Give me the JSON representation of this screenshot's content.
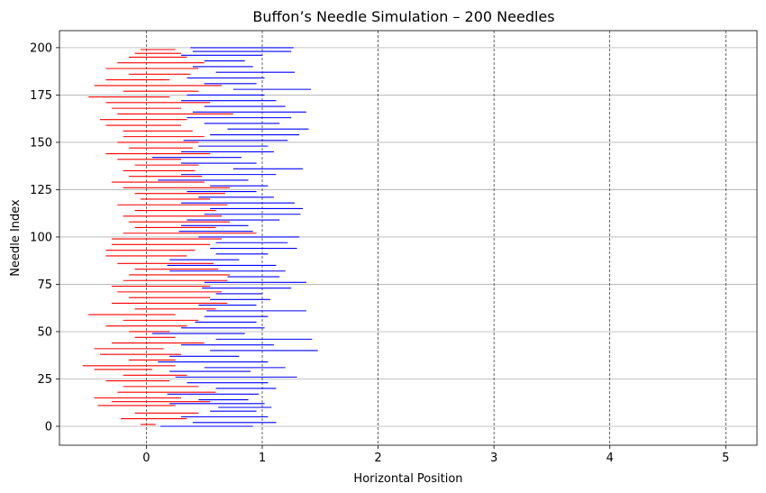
{
  "chart_data": {
    "type": "line",
    "title": "Buffon’s Needle Simulation – 200 Needles",
    "xlabel": "Horizontal Position",
    "ylabel": "Needle Index",
    "xlim": [
      -0.75,
      5.27
    ],
    "ylim": [
      -10,
      209
    ],
    "x_ticks": [
      0,
      1,
      2,
      3,
      4,
      5
    ],
    "y_ticks": [
      0,
      25,
      50,
      75,
      100,
      125,
      150,
      175,
      200
    ],
    "vertical_lines_at": [
      0,
      1,
      2,
      3,
      4,
      5
    ],
    "grid": "horizontal",
    "series": [
      {
        "color": "#0000ff",
        "values": [
          [
            0,
            0.12,
            0.92
          ],
          [
            2,
            0.4,
            1.12
          ],
          [
            5,
            0.3,
            1.05
          ],
          [
            8,
            0.55,
            0.95
          ],
          [
            10,
            0.62,
            1.08
          ],
          [
            12,
            0.2,
            1.02
          ],
          [
            14,
            0.45,
            0.88
          ],
          [
            17,
            0.18,
            0.97
          ],
          [
            20,
            0.6,
            1.12
          ],
          [
            23,
            0.35,
            1.05
          ],
          [
            26,
            0.25,
            1.3
          ],
          [
            29,
            0.2,
            0.9
          ],
          [
            31,
            0.5,
            1.2
          ],
          [
            34,
            0.1,
            1.05
          ],
          [
            37,
            0.2,
            0.8
          ],
          [
            40,
            0.55,
            1.48
          ],
          [
            43,
            0.3,
            1.1
          ],
          [
            46,
            0.6,
            1.43
          ],
          [
            49,
            0.05,
            0.85
          ],
          [
            52,
            0.3,
            1.02
          ],
          [
            55,
            0.42,
            0.95
          ],
          [
            58,
            0.5,
            1.05
          ],
          [
            61,
            0.52,
            1.38
          ],
          [
            64,
            0.45,
            0.95
          ],
          [
            67,
            0.55,
            1.07
          ],
          [
            70,
            0.6,
            1.0
          ],
          [
            73,
            0.48,
            1.25
          ],
          [
            76,
            0.5,
            1.38
          ],
          [
            79,
            0.7,
            1.15
          ],
          [
            82,
            0.2,
            1.2
          ],
          [
            85,
            0.18,
            1.12
          ],
          [
            88,
            0.2,
            0.8
          ],
          [
            91,
            0.6,
            1.05
          ],
          [
            94,
            0.55,
            1.3
          ],
          [
            97,
            0.6,
            1.22
          ],
          [
            100,
            0.45,
            1.32
          ],
          [
            103,
            0.28,
            0.92
          ],
          [
            106,
            0.3,
            0.88
          ],
          [
            109,
            0.35,
            1.15
          ],
          [
            112,
            0.5,
            1.33
          ],
          [
            115,
            0.55,
            1.35
          ],
          [
            118,
            0.3,
            1.28
          ],
          [
            121,
            0.45,
            1.1
          ],
          [
            124,
            0.35,
            0.95
          ],
          [
            127,
            0.55,
            1.05
          ],
          [
            130,
            0.1,
            0.88
          ],
          [
            133,
            0.3,
            1.12
          ],
          [
            136,
            0.75,
            1.35
          ],
          [
            139,
            0.3,
            0.95
          ],
          [
            142,
            0.05,
            0.82
          ],
          [
            145,
            0.3,
            1.1
          ],
          [
            148,
            0.45,
            1.05
          ],
          [
            151,
            0.32,
            1.22
          ],
          [
            154,
            0.55,
            1.32
          ],
          [
            157,
            0.7,
            1.4
          ],
          [
            160,
            0.5,
            1.15
          ],
          [
            163,
            0.35,
            1.25
          ],
          [
            166,
            0.4,
            1.38
          ],
          [
            169,
            0.5,
            1.2
          ],
          [
            172,
            0.3,
            1.12
          ],
          [
            175,
            0.35,
            1.02
          ],
          [
            178,
            0.75,
            1.42
          ],
          [
            181,
            0.5,
            0.95
          ],
          [
            184,
            0.35,
            1.02
          ],
          [
            187,
            0.6,
            1.28
          ],
          [
            190,
            0.4,
            0.92
          ],
          [
            193,
            0.5,
            0.85
          ],
          [
            196,
            0.3,
            1.0
          ],
          [
            198,
            0.4,
            1.25
          ],
          [
            200,
            0.38,
            1.27
          ]
        ]
      },
      {
        "color": "#ff0000",
        "values": [
          [
            1,
            -0.05,
            0.08
          ],
          [
            4,
            -0.22,
            0.35
          ],
          [
            7,
            -0.1,
            0.45
          ],
          [
            11,
            -0.42,
            0.25
          ],
          [
            13,
            -0.3,
            0.55
          ],
          [
            15,
            -0.45,
            0.3
          ],
          [
            18,
            -0.25,
            0.6
          ],
          [
            21,
            -0.2,
            0.45
          ],
          [
            24,
            -0.35,
            0.2
          ],
          [
            27,
            -0.2,
            0.35
          ],
          [
            30,
            -0.45,
            0.05
          ],
          [
            32,
            -0.55,
            0.25
          ],
          [
            35,
            -0.15,
            0.25
          ],
          [
            38,
            -0.4,
            0.3
          ],
          [
            41,
            -0.45,
            0.15
          ],
          [
            44,
            -0.3,
            0.5
          ],
          [
            47,
            -0.1,
            0.25
          ],
          [
            50,
            -0.15,
            0.2
          ],
          [
            53,
            -0.35,
            0.35
          ],
          [
            56,
            -0.2,
            0.45
          ],
          [
            59,
            -0.5,
            0.25
          ],
          [
            62,
            -0.1,
            0.6
          ],
          [
            65,
            -0.3,
            0.7
          ],
          [
            68,
            -0.15,
            0.55
          ],
          [
            71,
            -0.25,
            0.65
          ],
          [
            74,
            -0.3,
            0.55
          ],
          [
            77,
            -0.2,
            0.7
          ],
          [
            80,
            -0.15,
            0.72
          ],
          [
            83,
            -0.1,
            0.62
          ],
          [
            86,
            -0.25,
            0.58
          ],
          [
            90,
            -0.35,
            0.35
          ],
          [
            93,
            -0.35,
            0.42
          ],
          [
            96,
            -0.3,
            0.55
          ],
          [
            99,
            -0.3,
            0.65
          ],
          [
            102,
            -0.2,
            0.95
          ],
          [
            105,
            -0.1,
            0.6
          ],
          [
            108,
            -0.15,
            0.72
          ],
          [
            111,
            -0.2,
            0.65
          ],
          [
            114,
            -0.1,
            0.6
          ],
          [
            117,
            -0.25,
            0.7
          ],
          [
            120,
            -0.05,
            0.55
          ],
          [
            123,
            -0.1,
            0.68
          ],
          [
            126,
            -0.2,
            0.72
          ],
          [
            129,
            -0.3,
            0.5
          ],
          [
            132,
            -0.15,
            0.48
          ],
          [
            135,
            -0.2,
            0.42
          ],
          [
            138,
            -0.1,
            0.45
          ],
          [
            141,
            -0.25,
            0.3
          ],
          [
            144,
            -0.35,
            0.55
          ],
          [
            147,
            -0.15,
            0.4
          ],
          [
            150,
            -0.25,
            0.45
          ],
          [
            153,
            -0.2,
            0.5
          ],
          [
            156,
            -0.2,
            0.4
          ],
          [
            159,
            -0.35,
            0.3
          ],
          [
            162,
            -0.4,
            0.35
          ],
          [
            165,
            -0.25,
            0.75
          ],
          [
            168,
            -0.3,
            0.3
          ],
          [
            171,
            -0.35,
            0.55
          ],
          [
            174,
            -0.5,
            0.2
          ],
          [
            177,
            -0.2,
            0.45
          ],
          [
            180,
            -0.45,
            0.65
          ],
          [
            183,
            -0.35,
            0.2
          ],
          [
            186,
            -0.15,
            0.38
          ],
          [
            189,
            -0.35,
            0.45
          ],
          [
            192,
            -0.25,
            0.5
          ],
          [
            195,
            -0.15,
            0.35
          ],
          [
            197,
            -0.1,
            0.3
          ],
          [
            199,
            -0.05,
            0.25
          ]
        ]
      }
    ]
  }
}
